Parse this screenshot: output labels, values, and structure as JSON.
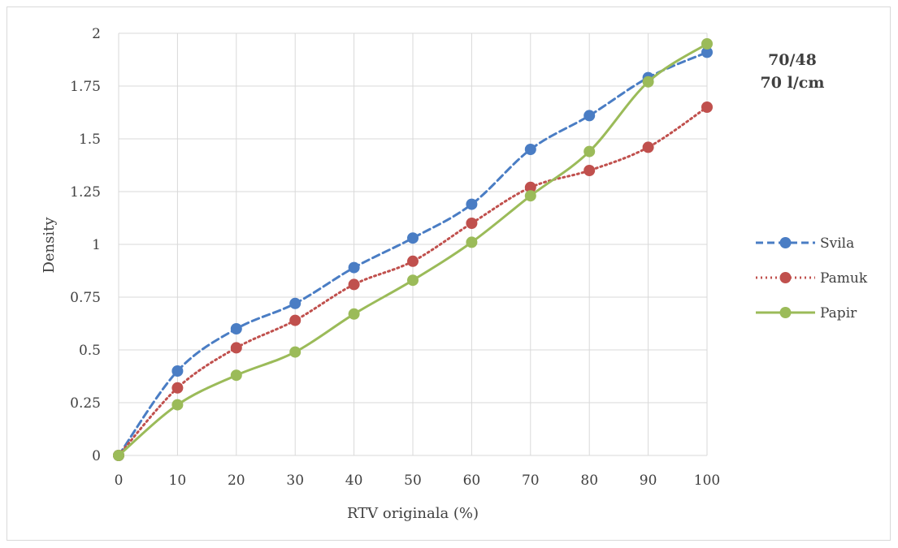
{
  "chart_data": {
    "type": "line",
    "title": "",
    "xlabel": "RTV originala (%)",
    "ylabel": "Density",
    "x": [
      0,
      10,
      20,
      30,
      40,
      50,
      60,
      70,
      80,
      90,
      100
    ],
    "xticks": [
      "0",
      "10",
      "20",
      "30",
      "40",
      "50",
      "60",
      "70",
      "80",
      "90",
      "100"
    ],
    "yticks": [
      "0",
      "0.25",
      "0.5",
      "0.75",
      "1",
      "1.25",
      "1.5",
      "1.75",
      "2"
    ],
    "ylim": [
      0,
      2
    ],
    "grid": true,
    "legend_position": "right",
    "annotation": [
      "70/48",
      "70 l/cm"
    ],
    "series": [
      {
        "name": "Svila",
        "color": "#4a7dc4",
        "style": "dashed",
        "values": [
          0,
          0.4,
          0.6,
          0.72,
          0.89,
          1.03,
          1.19,
          1.45,
          1.61,
          1.79,
          1.91
        ]
      },
      {
        "name": "Pamuk",
        "color": "#c0504d",
        "style": "dotted",
        "values": [
          0,
          0.32,
          0.51,
          0.64,
          0.81,
          0.92,
          1.1,
          1.27,
          1.35,
          1.46,
          1.65
        ]
      },
      {
        "name": "Papir",
        "color": "#9bbb59",
        "style": "solid",
        "values": [
          0,
          0.24,
          0.38,
          0.49,
          0.67,
          0.83,
          1.01,
          1.23,
          1.44,
          1.77,
          1.95
        ]
      }
    ]
  }
}
